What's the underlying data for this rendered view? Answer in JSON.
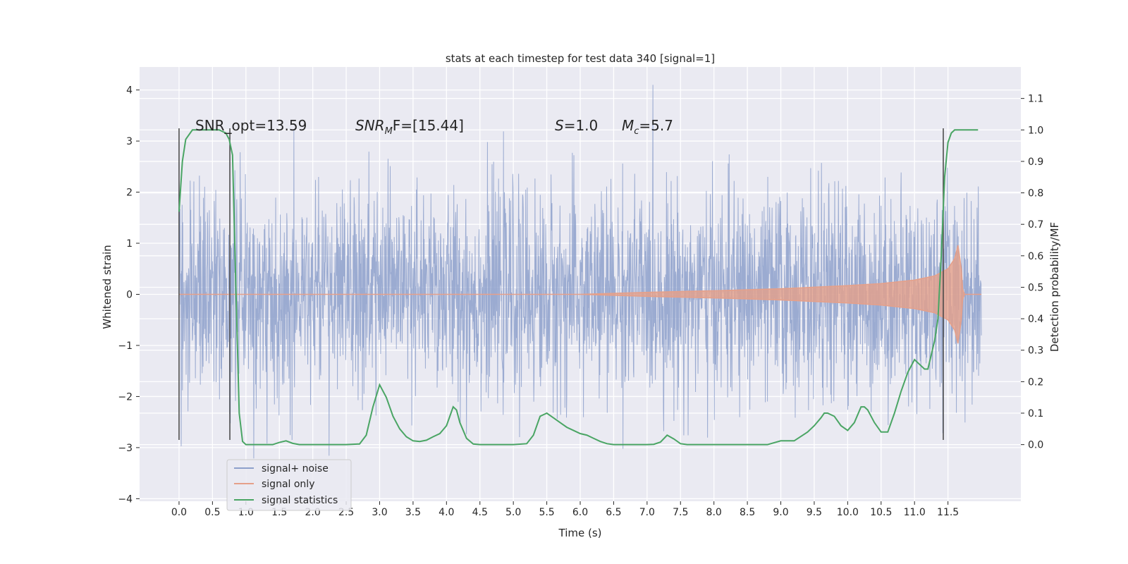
{
  "chart_data": {
    "type": "line",
    "title": "stats at each timestep for test data 340 [signal=1]",
    "xlabel": "Time (s)",
    "ylabel": "Whitened strain",
    "ylabel_right": "Detection probability/MF",
    "xlim": [
      -0.59,
      12.59
    ],
    "ylim": [
      -4.05,
      4.45
    ],
    "ylim_right": [
      -0.18,
      1.2
    ],
    "x_ticks": [
      "0.0",
      "0.5",
      "1.0",
      "1.5",
      "2.0",
      "2.5",
      "3.0",
      "3.5",
      "4.0",
      "4.5",
      "5.0",
      "5.5",
      "6.0",
      "6.5",
      "7.0",
      "7.5",
      "8.0",
      "8.5",
      "9.0",
      "9.5",
      "10.0",
      "10.5",
      "11.0",
      "11.5"
    ],
    "y_ticks": [
      "4",
      "3",
      "2",
      "1",
      "0",
      "−1",
      "−2",
      "−3",
      "−4"
    ],
    "y_ticks_right": [
      "1.1",
      "1.0",
      "0.9",
      "0.8",
      "0.7",
      "0.6",
      "0.5",
      "0.4",
      "0.3",
      "0.2",
      "0.1",
      "0.0"
    ],
    "grid": true,
    "legend_position": "lower-left",
    "series": [
      {
        "name": "signal+ noise",
        "color": "#8da0cb",
        "axis": "left",
        "x_range": [
          0.0,
          12.0
        ],
        "std": 1.0,
        "min": -3.68,
        "max": 4.1
      },
      {
        "name": "signal only",
        "color": "#e5a08a",
        "axis": "left",
        "envelope": {
          "x": [
            0.0,
            6.0,
            7.0,
            8.0,
            9.0,
            10.0,
            10.5,
            11.0,
            11.3,
            11.5,
            11.6,
            11.65,
            11.7,
            11.72,
            11.75,
            12.0
          ],
          "amplitude": [
            0.0,
            0.0,
            0.04,
            0.07,
            0.11,
            0.17,
            0.21,
            0.28,
            0.36,
            0.5,
            0.7,
            0.96,
            0.5,
            0.1,
            0.0,
            0.0
          ]
        }
      },
      {
        "name": "signal statistics",
        "color": "#4aa564",
        "axis": "right",
        "x": [
          0.0,
          0.05,
          0.1,
          0.2,
          0.3,
          0.4,
          0.5,
          0.6,
          0.7,
          0.75,
          0.8,
          0.85,
          0.9,
          0.95,
          1.0,
          1.2,
          1.4,
          1.5,
          1.6,
          1.7,
          1.8,
          2.0,
          2.5,
          2.7,
          2.8,
          2.9,
          3.0,
          3.1,
          3.2,
          3.3,
          3.4,
          3.5,
          3.6,
          3.7,
          3.8,
          3.9,
          4.0,
          4.05,
          4.1,
          4.15,
          4.2,
          4.3,
          4.4,
          4.5,
          4.6,
          5.0,
          5.2,
          5.3,
          5.4,
          5.5,
          5.6,
          5.7,
          5.8,
          5.9,
          6.0,
          6.1,
          6.2,
          6.3,
          6.4,
          6.5,
          6.6,
          6.8,
          7.0,
          7.1,
          7.2,
          7.3,
          7.4,
          7.5,
          7.6,
          8.0,
          8.5,
          8.8,
          9.0,
          9.2,
          9.4,
          9.5,
          9.6,
          9.65,
          9.7,
          9.8,
          9.9,
          10.0,
          10.1,
          10.2,
          10.25,
          10.3,
          10.4,
          10.5,
          10.6,
          10.7,
          10.8,
          10.9,
          11.0,
          11.1,
          11.15,
          11.2,
          11.3,
          11.35,
          11.4,
          11.45,
          11.5,
          11.55,
          11.6,
          11.7,
          11.8,
          11.95
        ],
        "values": [
          0.74,
          0.9,
          0.97,
          1.0,
          1.0,
          1.0,
          1.0,
          1.0,
          0.99,
          0.97,
          0.92,
          0.5,
          0.1,
          0.01,
          0.0,
          0.0,
          0.0,
          0.007,
          0.012,
          0.004,
          0.0,
          0.0,
          0.0,
          0.002,
          0.03,
          0.12,
          0.19,
          0.15,
          0.09,
          0.05,
          0.025,
          0.012,
          0.01,
          0.014,
          0.025,
          0.035,
          0.06,
          0.09,
          0.12,
          0.11,
          0.07,
          0.02,
          0.002,
          0.0,
          0.0,
          0.0,
          0.003,
          0.03,
          0.09,
          0.1,
          0.085,
          0.07,
          0.055,
          0.045,
          0.035,
          0.03,
          0.02,
          0.01,
          0.003,
          0.0,
          0.0,
          0.0,
          0.0,
          0.001,
          0.008,
          0.03,
          0.018,
          0.003,
          0.0,
          0.0,
          0.0,
          0.0,
          0.012,
          0.012,
          0.04,
          0.06,
          0.085,
          0.1,
          0.1,
          0.09,
          0.06,
          0.045,
          0.07,
          0.12,
          0.12,
          0.11,
          0.07,
          0.04,
          0.04,
          0.1,
          0.17,
          0.23,
          0.27,
          0.25,
          0.24,
          0.24,
          0.33,
          0.4,
          0.6,
          0.85,
          0.96,
          0.99,
          1.0,
          1.0,
          1.0,
          1.0
        ]
      }
    ],
    "vlines": [
      0.0,
      0.76,
      11.43
    ],
    "annotations": [
      "SNR_opt=13.59",
      "SNR",
      "M",
      "F=[15.44]",
      "S",
      "=1.0",
      "M",
      "c",
      "=5.7"
    ]
  }
}
